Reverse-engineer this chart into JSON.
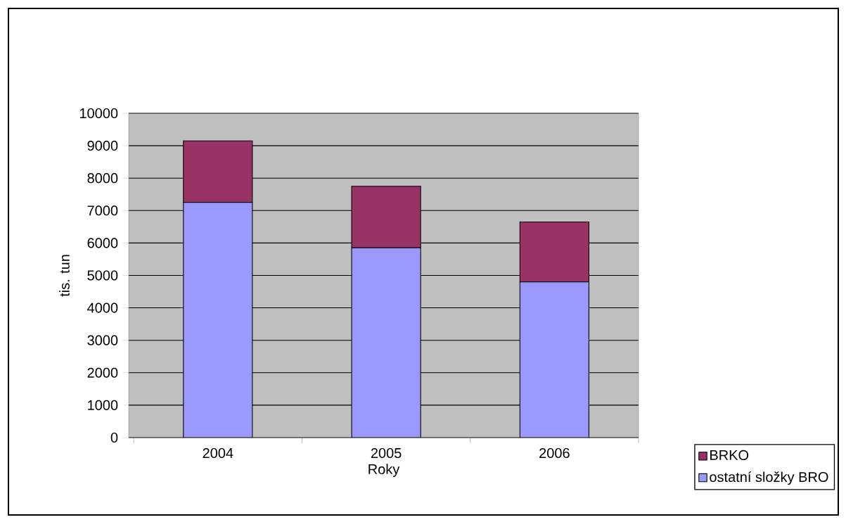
{
  "chart_data": {
    "type": "bar",
    "stacked": true,
    "xlabel": "Roky",
    "ylabel": "tis. tun",
    "categories": [
      "2004",
      "2005",
      "2006"
    ],
    "series": [
      {
        "name": "ostatní složky BRO",
        "color": "#9999ff",
        "values": [
          7250,
          5850,
          4800
        ]
      },
      {
        "name": "BRKO",
        "color": "#993366",
        "values": [
          1900,
          1900,
          1850
        ]
      }
    ],
    "ylim": [
      0,
      10000
    ],
    "yticks": [
      0,
      1000,
      2000,
      3000,
      4000,
      5000,
      6000,
      7000,
      8000,
      9000,
      10000
    ],
    "grid": "y",
    "legend": "bottom right"
  }
}
